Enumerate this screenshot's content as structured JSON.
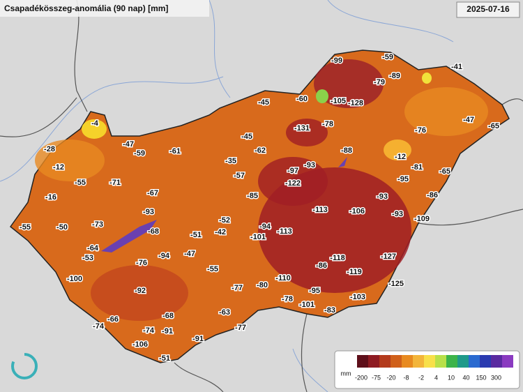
{
  "title": "Csapadékösszeg-anomália (90 nap) [mm]",
  "date": "2025-07-16",
  "stations": [
    -99,
    -59,
    -41,
    -89,
    -79,
    -60,
    -105,
    -128,
    -45,
    -4,
    -131,
    -78,
    -76,
    -47,
    -65,
    -45,
    -28,
    -47,
    -59,
    -61,
    -62,
    -88,
    -12,
    -35,
    -12,
    -97,
    -93,
    -81,
    -65,
    -57,
    -55,
    -71,
    -122,
    -95,
    -67,
    -85,
    -86,
    -16,
    -93,
    -93,
    -113,
    -106,
    -93,
    -109,
    -55,
    -50,
    -73,
    -52,
    -68,
    -94,
    -113,
    -51,
    -42,
    -101,
    -64,
    -53,
    -94,
    -47,
    -76,
    -118,
    -127,
    -86,
    -55,
    -119,
    -100,
    -110,
    -80,
    -77,
    -125,
    -92,
    -95,
    -78,
    -103,
    -101,
    -83,
    -63,
    -68,
    -66,
    -74,
    -91,
    -77,
    -74,
    -91,
    -106,
    -51
  ],
  "legend": {
    "unit": "mm",
    "labels": [
      -200,
      -75,
      -20,
      -8,
      -2,
      4,
      10,
      40,
      150,
      300
    ]
  }
}
